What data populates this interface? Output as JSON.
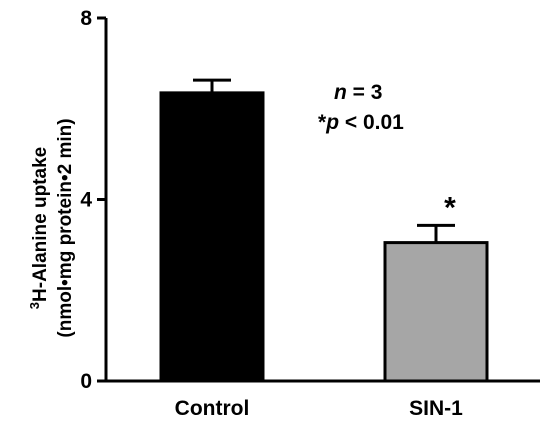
{
  "chart_data": {
    "type": "bar",
    "categories": [
      "Control",
      "SIN-1"
    ],
    "values": [
      6.35,
      3.05
    ],
    "error": [
      0.28,
      0.38
    ],
    "bar_colors": [
      "#000000",
      "#a6a6a6"
    ],
    "significance_marker": [
      "",
      "*"
    ],
    "ylim": [
      0,
      8
    ],
    "yticks": [
      "0",
      "4",
      "8"
    ],
    "ylabel": {
      "superscript": "3",
      "line1": "H-Alanine uptake",
      "line2": "(nmol•mg protein•2 min)"
    },
    "annotations": {
      "n_italic": "n",
      "n_rest": " = 3",
      "p_star": "*",
      "p_italic": "p",
      "p_rest": " < 0.01"
    },
    "grid": false,
    "legend": "none"
  }
}
